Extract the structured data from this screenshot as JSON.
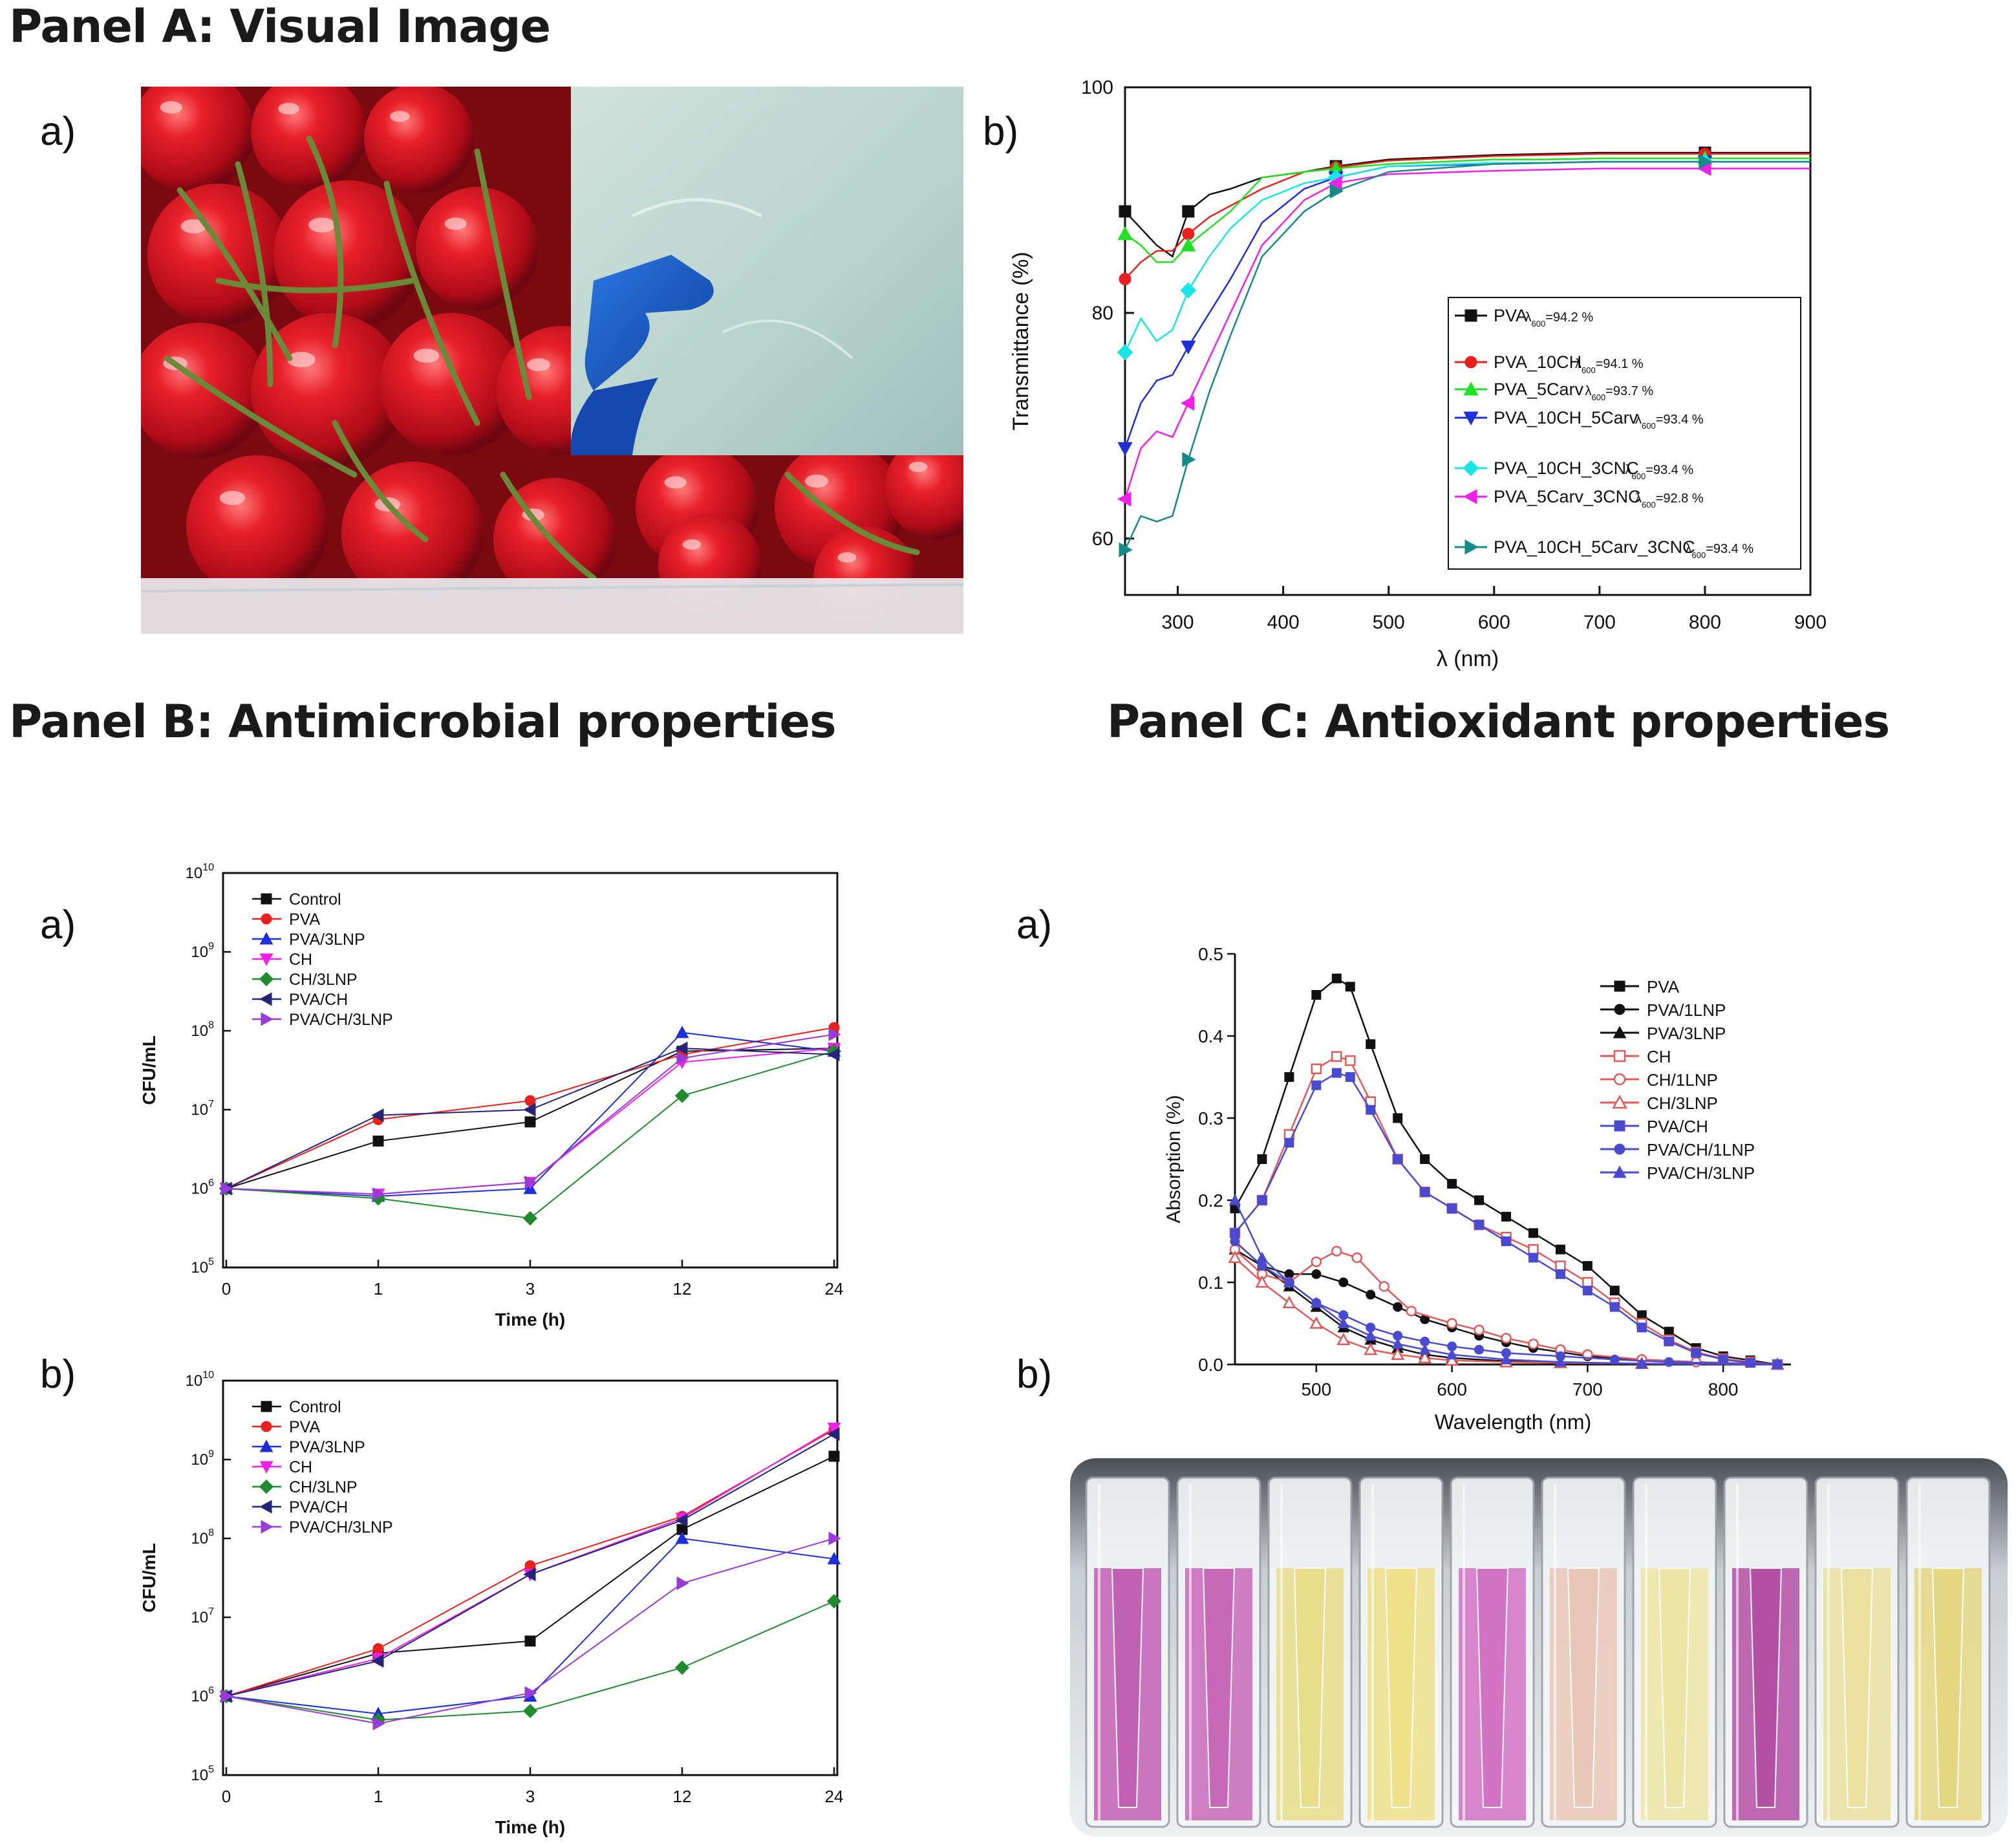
{
  "panels": {
    "a": {
      "title": "Panel A: Visual Image"
    },
    "b": {
      "title": "Panel B: Antimicrobial properties"
    },
    "c": {
      "title": "Panel C: Antioxidant properties"
    }
  },
  "sub_labels": {
    "a": "a)",
    "b": "b)"
  },
  "colors": {
    "black": "#111111",
    "red": "#e8201e",
    "blue": "#1f2fd8",
    "magenta": "#f020e8",
    "green": "#1f8a2e",
    "navy": "#24247a",
    "purple": "#9a3ad8",
    "lime": "#22e022",
    "cyan": "#18e6e6",
    "teal": "#168a86",
    "salmon": "#e05a5a",
    "indigo": "#4a4ad0"
  },
  "chart_data": [
    {
      "id": "transmittance",
      "type": "line",
      "xlabel": "λ (nm)",
      "ylabel": "Transmittance (%)",
      "xlim": [
        250,
        900
      ],
      "ylim": [
        55,
        100
      ],
      "xticks": [
        300,
        400,
        500,
        600,
        700,
        800,
        900
      ],
      "yticks": [
        60,
        80,
        100
      ],
      "legend_position": "right",
      "series": [
        {
          "name": "PVA",
          "note": "=94.2 %",
          "color": "#111111",
          "marker": "square",
          "x": [
            250,
            265,
            280,
            295,
            310,
            330,
            350,
            380,
            420,
            450,
            500,
            600,
            650,
            700,
            800,
            850,
            900
          ],
          "y": [
            89,
            87.5,
            86,
            85,
            89,
            90.5,
            91,
            92,
            92.5,
            93,
            93.6,
            94,
            94.1,
            94.2,
            94.2,
            94.2,
            94.2
          ]
        },
        {
          "name": "PVA_10CH",
          "note": "=94.1 %",
          "color": "#e8201e",
          "marker": "circle",
          "x": [
            250,
            265,
            280,
            295,
            310,
            330,
            350,
            380,
            420,
            450,
            500,
            600,
            650,
            700,
            800,
            850,
            900
          ],
          "y": [
            83,
            84.5,
            85.5,
            85.5,
            87,
            88.5,
            89.5,
            91,
            92.5,
            92.9,
            93.5,
            93.9,
            94,
            94.1,
            94.1,
            94.1,
            94.1
          ]
        },
        {
          "name": "PVA_5Carv",
          "note": "=93.7 %",
          "color": "#22e022",
          "marker": "triangle-up",
          "x": [
            250,
            265,
            280,
            295,
            310,
            330,
            350,
            380,
            420,
            450,
            500,
            600,
            650,
            700,
            800,
            850,
            900
          ],
          "y": [
            87,
            86,
            84.5,
            84.5,
            86,
            87.5,
            89,
            92,
            92.5,
            92.8,
            93.2,
            93.6,
            93.6,
            93.7,
            93.7,
            93.7,
            93.7
          ]
        },
        {
          "name": "PVA_10CH_5Carv",
          "note": "=93.4 %",
          "color": "#1f2fd8",
          "marker": "triangle-down",
          "x": [
            250,
            265,
            280,
            295,
            310,
            330,
            350,
            380,
            420,
            450,
            500,
            600,
            650,
            700,
            800,
            850,
            900
          ],
          "y": [
            68,
            72,
            74,
            74.5,
            77,
            80,
            83,
            88,
            91,
            92,
            93,
            93.2,
            93.3,
            93.4,
            93.4,
            93.4,
            93.4
          ]
        },
        {
          "name": "PVA_10CH_3CNC",
          "note": "=93.4 %",
          "color": "#18e6e6",
          "marker": "diamond",
          "x": [
            250,
            265,
            280,
            295,
            310,
            330,
            350,
            380,
            420,
            450,
            500,
            600,
            650,
            700,
            800,
            850,
            900
          ],
          "y": [
            76.5,
            79.5,
            77.5,
            78.5,
            82,
            85,
            87.5,
            90,
            91.5,
            92,
            93,
            93.3,
            93.3,
            93.4,
            93.4,
            93.4,
            93.4
          ]
        },
        {
          "name": "PVA_5Carv_3CNC",
          "note": "=92.8 %",
          "color": "#f020e8",
          "marker": "triangle-left",
          "x": [
            250,
            265,
            280,
            295,
            310,
            330,
            350,
            380,
            420,
            450,
            500,
            600,
            650,
            700,
            800,
            850,
            900
          ],
          "y": [
            63.5,
            68,
            69.5,
            69,
            72,
            76,
            80,
            86,
            90,
            91.5,
            92.3,
            92.6,
            92.7,
            92.8,
            92.8,
            92.8,
            92.8
          ]
        },
        {
          "name": "PVA_10CH_5Carv_3CNC",
          "note": "=93.4 %",
          "color": "#168a86",
          "marker": "triangle-right",
          "x": [
            250,
            265,
            280,
            295,
            310,
            330,
            350,
            380,
            420,
            450,
            500,
            600,
            650,
            700,
            800,
            850,
            900
          ],
          "y": [
            59,
            62,
            61.5,
            62,
            67,
            73,
            78,
            85,
            89,
            90.8,
            92.5,
            93.2,
            93.3,
            93.4,
            93.4,
            93.4,
            93.4
          ]
        }
      ]
    },
    {
      "id": "cfu_a",
      "type": "line",
      "xlabel": "Time (h)",
      "ylabel": "CFU/mL",
      "x_categories": [
        "0",
        "1",
        "3",
        "12",
        "24"
      ],
      "yscale": "log",
      "ylim": [
        100000.0,
        10000000000.0
      ],
      "legend_position": "top-left",
      "series": [
        {
          "name": "Control",
          "color": "#111111",
          "marker": "square",
          "values": [
            1000000.0,
            4000000.0,
            7000000.0,
            55000000.0,
            60000000.0
          ]
        },
        {
          "name": "PVA",
          "color": "#e8201e",
          "marker": "circle",
          "values": [
            1000000.0,
            7500000.0,
            13000000.0,
            50000000.0,
            110000000.0
          ]
        },
        {
          "name": "PVA/3LNP",
          "color": "#1f2fd8",
          "marker": "triangle-up",
          "values": [
            1000000.0,
            800000.0,
            1000000.0,
            95000000.0,
            55000000.0
          ]
        },
        {
          "name": "CH",
          "color": "#f020e8",
          "marker": "triangle-down",
          "values": [
            1000000.0,
            850000.0,
            1200000.0,
            40000000.0,
            60000000.0
          ]
        },
        {
          "name": "CH/3LNP",
          "color": "#1f8a2e",
          "marker": "diamond",
          "values": [
            1000000.0,
            750000.0,
            420000.0,
            15000000.0,
            55000000.0
          ]
        },
        {
          "name": "PVA/CH",
          "color": "#24247a",
          "marker": "triangle-left",
          "values": [
            1000000.0,
            8500000.0,
            10000000.0,
            60000000.0,
            50000000.0
          ]
        },
        {
          "name": "PVA/CH/3LNP",
          "color": "#9a3ad8",
          "marker": "triangle-right",
          "values": [
            1000000.0,
            850000.0,
            1200000.0,
            45000000.0,
            90000000.0
          ]
        }
      ]
    },
    {
      "id": "cfu_b",
      "type": "line",
      "xlabel": "Time (h)",
      "ylabel": "CFU/mL",
      "x_categories": [
        "0",
        "1",
        "3",
        "12",
        "24"
      ],
      "yscale": "log",
      "ylim": [
        100000.0,
        10000000000.0
      ],
      "legend_position": "top-left",
      "series": [
        {
          "name": "Control",
          "color": "#111111",
          "marker": "square",
          "values": [
            1000000.0,
            3500000.0,
            5000000.0,
            130000000.0,
            1100000000.0
          ]
        },
        {
          "name": "PVA",
          "color": "#e8201e",
          "marker": "circle",
          "values": [
            1000000.0,
            4000000.0,
            45000000.0,
            190000000.0,
            2400000000.0
          ]
        },
        {
          "name": "PVA/3LNP",
          "color": "#1f2fd8",
          "marker": "triangle-up",
          "values": [
            1000000.0,
            600000.0,
            1000000.0,
            100000000.0,
            55000000.0
          ]
        },
        {
          "name": "CH",
          "color": "#f020e8",
          "marker": "triangle-down",
          "values": [
            1000000.0,
            3000000.0,
            35000000.0,
            180000000.0,
            2500000000.0
          ]
        },
        {
          "name": "CH/3LNP",
          "color": "#1f8a2e",
          "marker": "diamond",
          "values": [
            1000000.0,
            500000.0,
            650000.0,
            2300000.0,
            16000000.0
          ]
        },
        {
          "name": "PVA/CH",
          "color": "#24247a",
          "marker": "triangle-left",
          "values": [
            1000000.0,
            2800000.0,
            35000000.0,
            170000000.0,
            2100000000.0
          ]
        },
        {
          "name": "PVA/CH/3LNP",
          "color": "#9a3ad8",
          "marker": "triangle-right",
          "values": [
            1000000.0,
            450000.0,
            1100000.0,
            27000000.0,
            100000000.0
          ]
        }
      ]
    },
    {
      "id": "absorption",
      "type": "line",
      "xlabel": "Wavelength (nm)",
      "ylabel": "Absorption (%)",
      "xlim": [
        440,
        850
      ],
      "ylim": [
        0,
        0.5
      ],
      "xticks": [
        500,
        600,
        700,
        800
      ],
      "yticks": [
        0.0,
        0.1,
        0.2,
        0.3,
        0.4,
        0.5
      ],
      "legend_position": "right",
      "series": [
        {
          "name": "PVA",
          "color": "#111111",
          "marker": "square",
          "x": [
            440,
            460,
            480,
            500,
            515,
            525,
            540,
            560,
            580,
            600,
            620,
            640,
            660,
            680,
            700,
            720,
            740,
            760,
            780,
            800,
            820,
            840
          ],
          "y": [
            0.19,
            0.25,
            0.35,
            0.45,
            0.47,
            0.46,
            0.39,
            0.3,
            0.25,
            0.22,
            0.2,
            0.18,
            0.16,
            0.14,
            0.12,
            0.09,
            0.06,
            0.04,
            0.02,
            0.01,
            0.005,
            0.0
          ]
        },
        {
          "name": "PVA/1LNP",
          "color": "#111111",
          "marker": "circle",
          "x": [
            440,
            460,
            480,
            500,
            520,
            540,
            560,
            580,
            600,
            620,
            640,
            660,
            680,
            700,
            740,
            780,
            840
          ],
          "y": [
            0.15,
            0.12,
            0.11,
            0.11,
            0.1,
            0.085,
            0.07,
            0.055,
            0.045,
            0.035,
            0.027,
            0.02,
            0.015,
            0.01,
            0.006,
            0.003,
            0.0
          ]
        },
        {
          "name": "PVA/3LNP",
          "color": "#111111",
          "marker": "triangle-up",
          "x": [
            440,
            460,
            480,
            500,
            520,
            540,
            560,
            580,
            600,
            640,
            680,
            740,
            840
          ],
          "y": [
            0.14,
            0.12,
            0.095,
            0.07,
            0.045,
            0.03,
            0.02,
            0.012,
            0.008,
            0.004,
            0.002,
            0.001,
            0.0
          ]
        },
        {
          "name": "CH",
          "color": "#e05a5a",
          "marker": "open-square",
          "x": [
            440,
            460,
            480,
            500,
            515,
            525,
            540,
            560,
            580,
            600,
            620,
            640,
            660,
            680,
            700,
            720,
            740,
            760,
            780,
            800,
            820,
            840
          ],
          "y": [
            0.16,
            0.2,
            0.28,
            0.36,
            0.375,
            0.37,
            0.32,
            0.25,
            0.21,
            0.19,
            0.17,
            0.155,
            0.14,
            0.12,
            0.1,
            0.075,
            0.05,
            0.03,
            0.015,
            0.007,
            0.003,
            0.0
          ]
        },
        {
          "name": "CH/1LNP",
          "color": "#e05a5a",
          "marker": "open-circle",
          "x": [
            440,
            460,
            480,
            500,
            515,
            530,
            550,
            570,
            600,
            620,
            640,
            660,
            680,
            700,
            740,
            780,
            840
          ],
          "y": [
            0.14,
            0.11,
            0.1,
            0.125,
            0.138,
            0.13,
            0.095,
            0.065,
            0.05,
            0.042,
            0.032,
            0.025,
            0.018,
            0.012,
            0.006,
            0.003,
            0.0
          ]
        },
        {
          "name": "CH/3LNP",
          "color": "#e05a5a",
          "marker": "open-triangle",
          "x": [
            440,
            460,
            480,
            500,
            520,
            540,
            560,
            580,
            600,
            640,
            680,
            740,
            840
          ],
          "y": [
            0.13,
            0.1,
            0.075,
            0.05,
            0.03,
            0.018,
            0.012,
            0.008,
            0.005,
            0.003,
            0.002,
            0.001,
            0.0
          ]
        },
        {
          "name": "PVA/CH",
          "color": "#4a4ad0",
          "marker": "square",
          "x": [
            440,
            460,
            480,
            500,
            515,
            525,
            540,
            560,
            580,
            600,
            620,
            640,
            660,
            680,
            700,
            720,
            740,
            760,
            780,
            800,
            820,
            840
          ],
          "y": [
            0.16,
            0.2,
            0.27,
            0.34,
            0.355,
            0.35,
            0.31,
            0.25,
            0.21,
            0.19,
            0.17,
            0.15,
            0.13,
            0.11,
            0.09,
            0.07,
            0.045,
            0.028,
            0.014,
            0.006,
            0.002,
            0.0
          ]
        },
        {
          "name": "PVA/CH/1LNP",
          "color": "#4a4ad0",
          "marker": "circle",
          "x": [
            440,
            460,
            480,
            500,
            520,
            540,
            560,
            580,
            600,
            620,
            640,
            680,
            720,
            760,
            840
          ],
          "y": [
            0.15,
            0.12,
            0.1,
            0.075,
            0.06,
            0.045,
            0.035,
            0.028,
            0.022,
            0.018,
            0.014,
            0.01,
            0.006,
            0.003,
            0.0
          ]
        },
        {
          "name": "PVA/CH/3LNP",
          "color": "#4a4ad0",
          "marker": "triangle-up",
          "x": [
            440,
            460,
            480,
            500,
            520,
            540,
            560,
            580,
            600,
            640,
            680,
            740,
            840
          ],
          "y": [
            0.2,
            0.13,
            0.1,
            0.075,
            0.05,
            0.035,
            0.025,
            0.018,
            0.012,
            0.006,
            0.003,
            0.001,
            0.0
          ]
        }
      ]
    }
  ]
}
